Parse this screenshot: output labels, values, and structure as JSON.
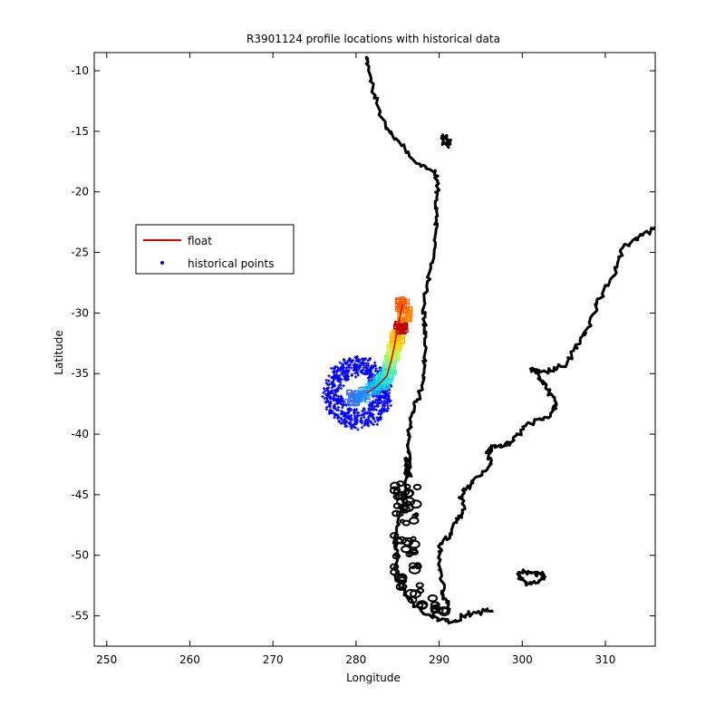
{
  "chart_data": {
    "type": "scatter",
    "title": "R3901124 profile locations with historical data",
    "xlabel": "Longitude",
    "ylabel": "Latitude",
    "xlim": [
      248.5,
      316
    ],
    "ylim": [
      -57.5,
      -8.5
    ],
    "xticks": [
      250,
      260,
      270,
      280,
      290,
      300,
      310
    ],
    "yticks": [
      -10,
      -15,
      -20,
      -25,
      -30,
      -35,
      -40,
      -45,
      -50,
      -55
    ],
    "grid": false,
    "legend": {
      "placement": "upper-left",
      "entries": [
        {
          "label": "float",
          "color": "#e00000",
          "marker": "line"
        },
        {
          "label": "historical points",
          "color": "#0000ff",
          "marker": "dot"
        }
      ]
    },
    "float_track": {
      "color": "#e00000",
      "points": [
        [
          281.3,
          -36.6
        ],
        [
          282.6,
          -36.0
        ],
        [
          283.7,
          -35.2
        ],
        [
          284.2,
          -34.0
        ],
        [
          284.6,
          -32.8
        ],
        [
          284.9,
          -31.6
        ],
        [
          285.1,
          -30.8
        ],
        [
          285.3,
          -30.2
        ],
        [
          285.6,
          -29.3
        ]
      ]
    },
    "historical_cluster": {
      "color": "#0000ff",
      "center": [
        280.2,
        -36.6
      ],
      "lon_radius": 7.3,
      "lat_radius": 2.9,
      "count": 700
    },
    "profile_groups": [
      {
        "lon": 279.6,
        "lat": -37.0,
        "color": "#3a6cf4"
      },
      {
        "lon": 280.8,
        "lat": -36.8,
        "color": "#1e88ff"
      },
      {
        "lon": 282.1,
        "lat": -36.2,
        "color": "#00b2ff"
      },
      {
        "lon": 283.0,
        "lat": -35.7,
        "color": "#00d8f0"
      },
      {
        "lon": 283.6,
        "lat": -35.2,
        "color": "#19e7d9"
      },
      {
        "lon": 284.0,
        "lat": -34.6,
        "color": "#4cf0b0"
      },
      {
        "lon": 284.3,
        "lat": -33.8,
        "color": "#8cf87a"
      },
      {
        "lon": 284.6,
        "lat": -33.2,
        "color": "#c6f548"
      },
      {
        "lon": 284.8,
        "lat": -32.5,
        "color": "#eedc1a"
      },
      {
        "lon": 285.0,
        "lat": -31.8,
        "color": "#ffb400"
      },
      {
        "lon": 285.4,
        "lat": -31.1,
        "color": "#b80000"
      },
      {
        "lon": 285.9,
        "lat": -30.1,
        "color": "#ff8800"
      },
      {
        "lon": 285.6,
        "lat": -29.3,
        "color": "#ff5a00"
      }
    ],
    "coastline": {
      "color": "#000000",
      "west_coast": [
        [
          281.2,
          -8.8
        ],
        [
          281.5,
          -10
        ],
        [
          282.0,
          -11.5
        ],
        [
          282.6,
          -12.9
        ],
        [
          283.6,
          -14.8
        ],
        [
          284.8,
          -15.6
        ],
        [
          286.3,
          -16.7
        ],
        [
          287.8,
          -17.9
        ],
        [
          289.5,
          -18.3
        ],
        [
          289.8,
          -19.2
        ],
        [
          289.7,
          -20.5
        ],
        [
          289.8,
          -22.0
        ],
        [
          289.6,
          -23.2
        ],
        [
          289.4,
          -24.8
        ],
        [
          289.0,
          -26.3
        ],
        [
          288.5,
          -27.8
        ],
        [
          288.2,
          -29.4
        ],
        [
          288.2,
          -30.7
        ],
        [
          288.4,
          -32.0
        ],
        [
          288.3,
          -33.3
        ],
        [
          288.2,
          -34.6
        ],
        [
          287.9,
          -36.0
        ],
        [
          287.3,
          -37.3
        ],
        [
          286.6,
          -38.6
        ],
        [
          286.4,
          -40.0
        ],
        [
          286.3,
          -41.3
        ],
        [
          286.4,
          -42.3
        ],
        [
          286.1,
          -43.4
        ],
        [
          285.9,
          -44.7
        ],
        [
          285.5,
          -46.0
        ],
        [
          285.0,
          -47.3
        ],
        [
          284.7,
          -48.6
        ],
        [
          284.9,
          -49.9
        ],
        [
          284.6,
          -51.0
        ],
        [
          285.2,
          -52.4
        ],
        [
          286.0,
          -53.3
        ],
        [
          287.3,
          -54.2
        ],
        [
          288.8,
          -54.9
        ],
        [
          290.3,
          -55.3
        ],
        [
          291.6,
          -55.5
        ],
        [
          292.8,
          -55.0
        ],
        [
          294.0,
          -54.8
        ],
        [
          295.5,
          -54.6
        ],
        [
          296.5,
          -54.6
        ]
      ],
      "east_coast": [
        [
          291.1,
          -54.7
        ],
        [
          290.9,
          -53.9
        ],
        [
          290.5,
          -53.3
        ],
        [
          290.4,
          -52.2
        ],
        [
          290.0,
          -51.2
        ],
        [
          289.9,
          -50.2
        ],
        [
          290.2,
          -49.0
        ],
        [
          291.3,
          -48.2
        ],
        [
          292.1,
          -47.3
        ],
        [
          292.6,
          -46.7
        ],
        [
          293.0,
          -45.9
        ],
        [
          292.5,
          -45.2
        ],
        [
          293.2,
          -44.6
        ],
        [
          294.3,
          -43.6
        ],
        [
          295.8,
          -42.9
        ],
        [
          296.3,
          -42.2
        ],
        [
          295.7,
          -41.5
        ],
        [
          296.3,
          -41.0
        ],
        [
          297.8,
          -41.0
        ],
        [
          298.6,
          -40.7
        ],
        [
          299.6,
          -40.0
        ],
        [
          300.6,
          -39.1
        ],
        [
          302.2,
          -38.8
        ],
        [
          303.4,
          -38.3
        ],
        [
          304.1,
          -37.6
        ],
        [
          303.7,
          -36.9
        ],
        [
          302.8,
          -36.2
        ],
        [
          302.2,
          -35.5
        ],
        [
          302.0,
          -34.9
        ],
        [
          301.0,
          -34.6
        ],
        [
          302.5,
          -34.8
        ],
        [
          303.8,
          -34.8
        ],
        [
          305.4,
          -34.1
        ],
        [
          306.2,
          -33.1
        ],
        [
          307.1,
          -32.0
        ],
        [
          307.9,
          -31.2
        ],
        [
          308.7,
          -30.0
        ],
        [
          309.3,
          -28.8
        ],
        [
          310.9,
          -27.0
        ],
        [
          311.5,
          -25.8
        ],
        [
          312.1,
          -24.6
        ],
        [
          313.3,
          -24.0
        ],
        [
          314.5,
          -23.6
        ],
        [
          316.0,
          -22.9
        ]
      ],
      "chiloe": [
        [
          285.9,
          -41.9
        ],
        [
          286.5,
          -42.5
        ],
        [
          286.6,
          -43.4
        ],
        [
          286.2,
          -43.2
        ],
        [
          285.9,
          -42.6
        ],
        [
          285.9,
          -41.9
        ]
      ],
      "titicaca": [
        [
          290.3,
          -15.3
        ],
        [
          290.9,
          -15.6
        ],
        [
          291.3,
          -16.0
        ],
        [
          291.0,
          -16.2
        ],
        [
          290.5,
          -15.8
        ],
        [
          290.3,
          -15.3
        ]
      ],
      "falklands": [
        [
          299.6,
          -51.5
        ],
        [
          300.7,
          -51.3
        ],
        [
          301.6,
          -51.6
        ],
        [
          302.5,
          -51.5
        ],
        [
          302.6,
          -51.9
        ],
        [
          301.6,
          -52.3
        ],
        [
          300.4,
          -52.2
        ],
        [
          299.6,
          -51.9
        ],
        [
          299.6,
          -51.5
        ]
      ]
    }
  }
}
